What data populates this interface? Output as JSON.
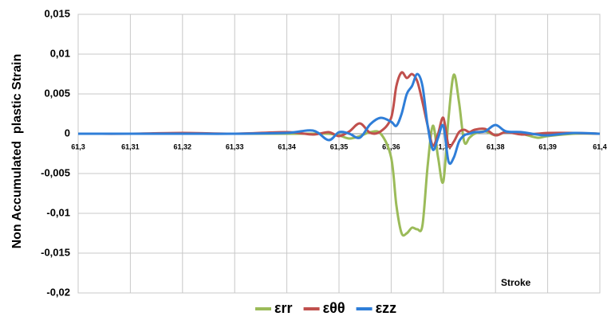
{
  "chart_data": {
    "type": "line",
    "y_label": "Non Accumulated  plastic Strain",
    "annotation": "Stroke",
    "x": [
      61.3,
      61.31,
      61.32,
      61.33,
      61.34,
      61.345,
      61.348,
      61.35,
      61.352,
      61.354,
      61.356,
      61.358,
      61.36,
      61.361,
      61.362,
      61.363,
      61.364,
      61.365,
      61.366,
      61.367,
      61.368,
      61.369,
      61.37,
      61.371,
      61.372,
      61.373,
      61.374,
      61.375,
      61.376,
      61.378,
      61.38,
      61.382,
      61.385,
      61.388,
      61.39,
      61.395,
      61.4
    ],
    "series": [
      {
        "name": "εrr",
        "color": "#9bbb59",
        "values": [
          0,
          0,
          0,
          0,
          0,
          0,
          0,
          -0.0002,
          -0.0006,
          -0.0003,
          0.0002,
          0,
          -0.003,
          -0.009,
          -0.0125,
          -0.0125,
          -0.0118,
          -0.012,
          -0.0115,
          -0.004,
          0.001,
          -0.003,
          -0.006,
          0.002,
          0.0074,
          0.004,
          -0.001,
          -0.0005,
          0,
          0.0003,
          -0.0002,
          0.0002,
          0,
          -0.0005,
          -0.0003,
          0,
          0
        ]
      },
      {
        "name": "εθθ",
        "color": "#c0504d",
        "values": [
          0,
          0,
          0.0001,
          0,
          0.0002,
          -0.0001,
          0.0002,
          -0.0003,
          0.0003,
          0.0013,
          0.0001,
          0.0003,
          0.002,
          0.006,
          0.0077,
          0.007,
          0.0075,
          0.0066,
          0.004,
          0.001,
          -0.0015,
          0,
          0.002,
          -0.0015,
          -0.001,
          0.0002,
          0.0005,
          0.0002,
          0.0005,
          0.0006,
          -0.0002,
          0.0002,
          -0.0001,
          0,
          0.0001,
          0.0001,
          0
        ]
      },
      {
        "name": "εzz",
        "color": "#2f7ed8",
        "values": [
          0,
          0,
          0,
          0,
          0.0001,
          0.0004,
          -0.0008,
          0.0002,
          0,
          -0.0005,
          0.0012,
          0.002,
          0.0015,
          0.001,
          0.0025,
          0.005,
          0.006,
          0.0075,
          0.006,
          0.001,
          -0.002,
          -0.0005,
          0.001,
          -0.0035,
          -0.003,
          -0.001,
          -0.0002,
          0,
          0.0002,
          0.0003,
          0.0011,
          0.0003,
          0.0002,
          -0.0001,
          -0.0002,
          0.0001,
          0
        ]
      }
    ],
    "xlim": [
      61.3,
      61.4
    ],
    "xticks": [
      {
        "value": 61.3,
        "label": "61,3"
      },
      {
        "value": 61.31,
        "label": "61,31"
      },
      {
        "value": 61.32,
        "label": "61,32"
      },
      {
        "value": 61.33,
        "label": "61,33"
      },
      {
        "value": 61.34,
        "label": "61,34"
      },
      {
        "value": 61.35,
        "label": "61,35"
      },
      {
        "value": 61.36,
        "label": "61,36"
      },
      {
        "value": 61.37,
        "label": "61,37"
      },
      {
        "value": 61.38,
        "label": "61,38"
      },
      {
        "value": 61.39,
        "label": "61,39"
      },
      {
        "value": 61.4,
        "label": "61,4"
      }
    ],
    "ylim": [
      -0.02,
      0.015
    ],
    "yticks": [
      {
        "value": 0.015,
        "label": "0,015"
      },
      {
        "value": 0.01,
        "label": "0,01"
      },
      {
        "value": 0.005,
        "label": "0,005"
      },
      0,
      {
        "value": -0.005,
        "label": "-0,005"
      },
      {
        "value": -0.01,
        "label": "-0,01"
      },
      {
        "value": -0.015,
        "label": "-0,015"
      },
      {
        "value": -0.02,
        "label": "-0,02"
      }
    ],
    "grid": true,
    "legend": "bottom"
  }
}
